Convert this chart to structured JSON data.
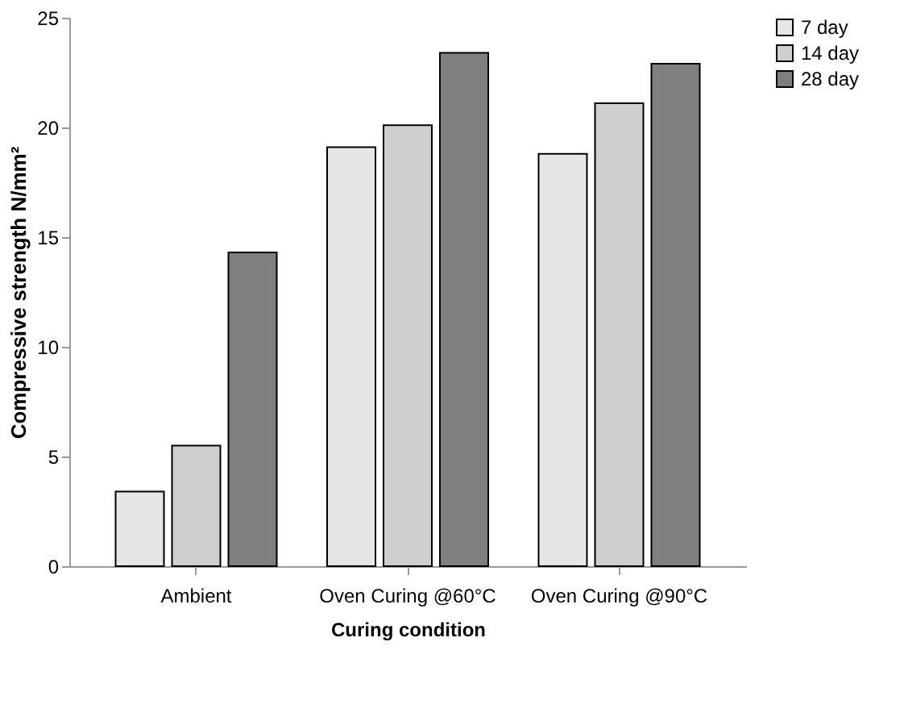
{
  "chart_data": {
    "type": "bar",
    "xlabel": "Curing condition",
    "ylabel": "Compressive strength N/mm²",
    "categories": [
      "Ambient",
      "Oven Curing @60°C",
      "Oven Curing @90°C"
    ],
    "series": [
      {
        "name": "7 day",
        "color": "#e6e6e6",
        "values": [
          3.4,
          19.1,
          18.8
        ]
      },
      {
        "name": "14 day",
        "color": "#cfcfcf",
        "values": [
          5.5,
          20.1,
          21.1
        ]
      },
      {
        "name": "28 day",
        "color": "#7f7f7f",
        "values": [
          14.3,
          23.4,
          22.9
        ]
      }
    ],
    "ylim": [
      0,
      25
    ],
    "yticks": [
      0,
      5,
      10,
      15,
      20,
      25
    ],
    "grid": false,
    "legend": "right"
  }
}
